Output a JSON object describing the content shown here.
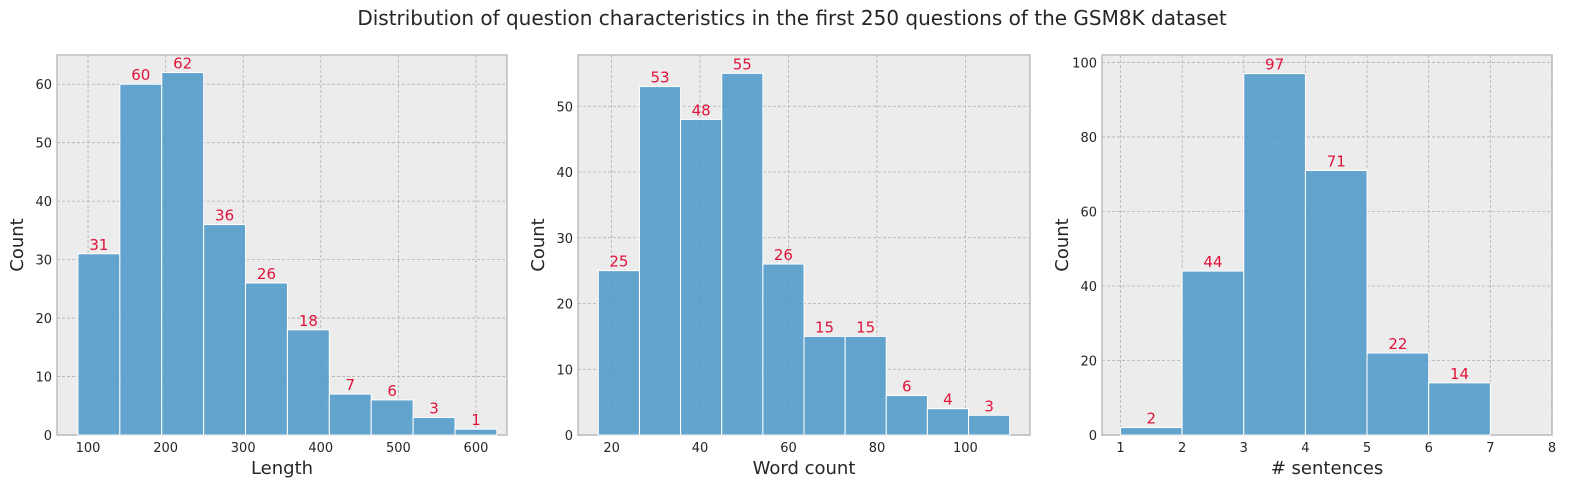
{
  "figure": {
    "title": "Distribution of question characteristics in the first 250 questions of the GSM8K dataset"
  },
  "colors": {
    "bar": "#4f9ac8",
    "bar_label": "#e0133a",
    "plot_background": "#ececec"
  },
  "chart_data": [
    {
      "type": "bar",
      "title": "",
      "xlabel": "Length",
      "ylabel": "Count",
      "bin_edges": [
        87,
        141,
        195,
        249,
        303,
        357,
        411,
        465,
        519,
        573,
        627
      ],
      "values": [
        31,
        60,
        62,
        36,
        26,
        18,
        7,
        6,
        3,
        1
      ],
      "xlim": [
        60,
        640
      ],
      "ylim": [
        0,
        65
      ],
      "xticks": [
        100,
        200,
        300,
        400,
        500,
        600
      ],
      "yticks": [
        0,
        10,
        20,
        30,
        40,
        50,
        60
      ],
      "grid": true
    },
    {
      "type": "bar",
      "title": "",
      "xlabel": "Word count",
      "ylabel": "Count",
      "bin_edges": [
        17,
        26.3,
        35.6,
        44.9,
        54.2,
        63.5,
        72.8,
        82.1,
        91.4,
        100.7,
        110
      ],
      "values": [
        25,
        53,
        48,
        55,
        26,
        15,
        15,
        6,
        4,
        3
      ],
      "xlim": [
        12.4,
        114.6
      ],
      "ylim": [
        0,
        57.8
      ],
      "xticks": [
        20,
        40,
        60,
        80,
        100
      ],
      "yticks": [
        0,
        10,
        20,
        30,
        40,
        50
      ],
      "grid": true
    },
    {
      "type": "bar",
      "title": "",
      "xlabel": "# sentences",
      "ylabel": "Count",
      "bin_edges": [
        1,
        2,
        3,
        4,
        5,
        6,
        7
      ],
      "values": [
        2,
        44,
        97,
        71,
        22,
        14
      ],
      "xlim": [
        0.7,
        8
      ],
      "ylim": [
        0,
        102
      ],
      "xticks": [
        1,
        2,
        3,
        4,
        5,
        6,
        7,
        8
      ],
      "yticks": [
        0,
        20,
        40,
        60,
        80,
        100
      ],
      "grid": true
    }
  ]
}
